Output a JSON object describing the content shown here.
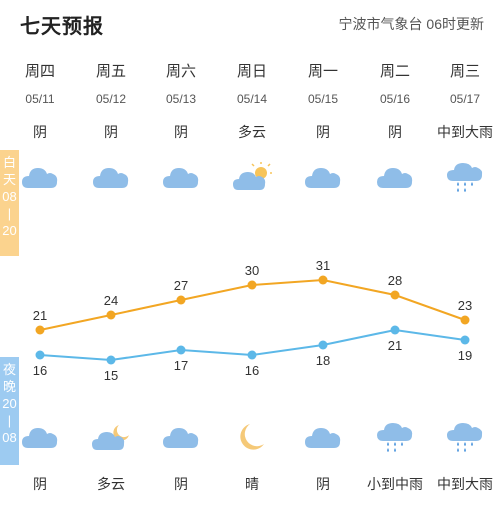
{
  "header": {
    "title": "七天预报",
    "source": "宁波市气象台",
    "update": "06时更新"
  },
  "labels": {
    "day": [
      "白",
      "天",
      "08",
      "|",
      "20"
    ],
    "night": [
      "夜",
      "晚",
      "20",
      "|",
      "08"
    ]
  },
  "days": [
    {
      "name": "周四",
      "date": "05/11",
      "day_weather": "阴",
      "night_weather": "阴",
      "day_icon": "cloud-icon",
      "night_icon": "cloud-icon"
    },
    {
      "name": "周五",
      "date": "05/12",
      "day_weather": "阴",
      "night_weather": "多云",
      "day_icon": "cloud-icon",
      "night_icon": "cloud-moon-icon"
    },
    {
      "name": "周六",
      "date": "05/13",
      "day_weather": "阴",
      "night_weather": "阴",
      "day_icon": "cloud-icon",
      "night_icon": "cloud-icon"
    },
    {
      "name": "周日",
      "date": "05/14",
      "day_weather": "多云",
      "night_weather": "晴",
      "day_icon": "cloud-sun-icon",
      "night_icon": "moon-icon"
    },
    {
      "name": "周一",
      "date": "05/15",
      "day_weather": "阴",
      "night_weather": "阴",
      "day_icon": "cloud-icon",
      "night_icon": "cloud-icon"
    },
    {
      "name": "周二",
      "date": "05/16",
      "day_weather": "阴",
      "night_weather": "小到中雨",
      "day_icon": "cloud-icon",
      "night_icon": "rain-icon"
    },
    {
      "name": "周三",
      "date": "05/17",
      "day_weather": "中到大雨",
      "night_weather": "中到大雨",
      "day_icon": "rain-icon",
      "night_icon": "rain-icon"
    }
  ],
  "chart_data": {
    "type": "line",
    "categories": [
      "05/11",
      "05/12",
      "05/13",
      "05/14",
      "05/15",
      "05/16",
      "05/17"
    ],
    "series": [
      {
        "name": "",
        "values": [
          21,
          24,
          27,
          30,
          31,
          28,
          23
        ],
        "color": "#f2a623"
      },
      {
        "name": "",
        "values": [
          16,
          15,
          17,
          16,
          18,
          21,
          19
        ],
        "color": "#5cb8e8"
      }
    ],
    "ylim": [
      13,
      33
    ]
  },
  "colors": {
    "cloud": "#8fbde8",
    "sun": "#f7c45a",
    "moon": "#f5c978",
    "rain": "#5b9fe0",
    "day_tag": "#fbd38e",
    "night_tag": "#9dcbf1"
  }
}
